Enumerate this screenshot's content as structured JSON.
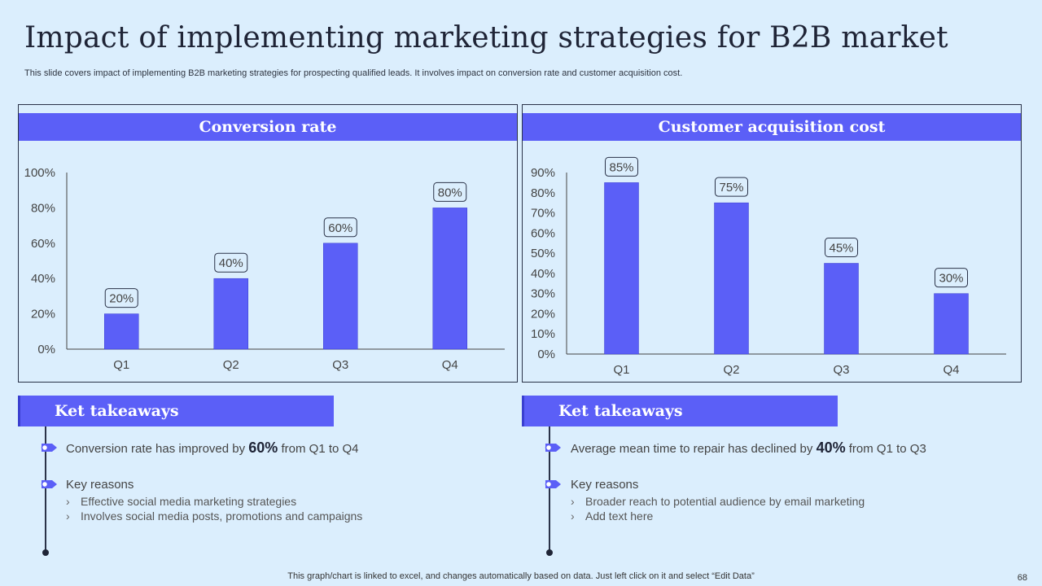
{
  "slide": {
    "title": "Impact of implementing marketing strategies for B2B market",
    "subtitle": "This slide covers impact of implementing B2B marketing strategies for prospecting qualified leads. It involves impact on conversion rate and customer acquisition cost.",
    "footer": "This graph/chart is linked to excel,  and changes automatically based on data. Just left click on it and select “Edit Data”",
    "page_number": "68"
  },
  "colors": {
    "accent": "#5b5ff7",
    "background": "#dbeefd",
    "border": "#2a3248"
  },
  "chart_data": [
    {
      "type": "bar",
      "title": "Conversion rate",
      "categories": [
        "Q1",
        "Q2",
        "Q3",
        "Q4"
      ],
      "values": [
        20,
        40,
        60,
        80
      ],
      "data_labels": [
        "20%",
        "40%",
        "60%",
        "80%"
      ],
      "yticks": [
        "0%",
        "20%",
        "40%",
        "60%",
        "80%",
        "100%"
      ],
      "ylim": [
        0,
        100
      ],
      "grid": false,
      "color": "#5b5ff7"
    },
    {
      "type": "bar",
      "title": "Customer acquisition cost",
      "categories": [
        "Q1",
        "Q2",
        "Q3",
        "Q4"
      ],
      "values": [
        85,
        75,
        45,
        30
      ],
      "data_labels": [
        "85%",
        "75%",
        "45%",
        "30%"
      ],
      "yticks": [
        "0%",
        "10%",
        "20%",
        "30%",
        "40%",
        "50%",
        "60%",
        "70%",
        "80%",
        "90%"
      ],
      "ylim": [
        0,
        90
      ],
      "grid": false,
      "color": "#5b5ff7"
    }
  ],
  "takeaways": {
    "left": {
      "header": "Ket takeaways",
      "point1_pre": "Conversion rate has improved by ",
      "point1_value": "60%",
      "point1_post": " from Q1 to Q4",
      "point2": "Key reasons",
      "sub": [
        "Effective social media marketing strategies",
        "Involves social media posts, promotions and campaigns"
      ]
    },
    "right": {
      "header": "Ket takeaways",
      "point1_pre": "Average mean time to repair has declined by ",
      "point1_value": "40%",
      "point1_post": "  from Q1 to Q3",
      "point2": "Key reasons",
      "sub": [
        "Broader reach to potential audience by email marketing",
        "Add text here"
      ]
    }
  }
}
